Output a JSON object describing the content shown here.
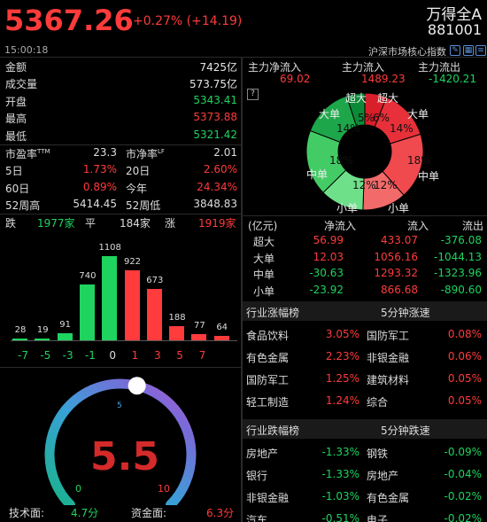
{
  "header": {
    "price": "5367.26",
    "change": "+0.27% (+14.19)",
    "name": "万得全A",
    "code": "881001",
    "time": "15:00:18",
    "index_label": "沪深市场核心指数"
  },
  "stats": [
    {
      "label": "金额",
      "value": "7425亿",
      "color": "white"
    },
    {
      "label": "成交量",
      "value": "573.75亿",
      "color": "white"
    },
    {
      "label": "开盘",
      "value": "5343.41",
      "color": "green"
    },
    {
      "label": "最高",
      "value": "5373.88",
      "color": "red"
    },
    {
      "label": "最低",
      "value": "5321.42",
      "color": "green"
    }
  ],
  "ratios": {
    "pe_label": "市盈率TTM",
    "pe": "23.3",
    "pb_label": "市净率LF",
    "pb": "2.01"
  },
  "periods": [
    {
      "l1": "5日",
      "v1": "1.73%",
      "l2": "20日",
      "v2": "2.60%"
    },
    {
      "l1": "60日",
      "v1": "0.89%",
      "l2": "今年",
      "v2": "24.34%"
    }
  ],
  "week52": {
    "high_label": "52周高",
    "high": "5414.45",
    "low_label": "52周低",
    "low": "3848.83"
  },
  "breadth": {
    "down_label": "跌",
    "down": "1977家",
    "flat_label": "平",
    "flat": "184家",
    "up_label": "涨",
    "up": "1919家"
  },
  "dist_chart": {
    "values": [
      28,
      19,
      91,
      740,
      1108,
      922,
      673,
      188,
      77,
      64
    ],
    "ticks": [
      "-7",
      "-5",
      "-3",
      "-1",
      "0",
      "1",
      "3",
      "5",
      "7"
    ]
  },
  "gauge": {
    "value": "5.5",
    "min": "0",
    "mid": "5",
    "max": "10",
    "value_num": 5.5
  },
  "scores": {
    "tech_label": "技术面:",
    "tech": "4.7分",
    "fund_label": "资金面:",
    "fund": "6.3分"
  },
  "flow": {
    "net_label": "主力净流入",
    "net": "69.02",
    "in_label": "主力流入",
    "in": "1489.23",
    "out_label": "主力流出",
    "out": "-1420.21",
    "help": "?"
  },
  "donut": {
    "labels": [
      "超大",
      "超大",
      "大单",
      "大单",
      "中单",
      "中单",
      "小单",
      "小单"
    ],
    "pcts": [
      "5%",
      "6%",
      "14%",
      "14%",
      "18%",
      "18%",
      "12%",
      "12%"
    ]
  },
  "flow_table": {
    "h": [
      "(亿元)",
      "净流入",
      "流入",
      "流出"
    ],
    "rows": [
      {
        "n": "超大",
        "net": "56.99",
        "in": "433.07",
        "out": "-376.08",
        "nc": "red"
      },
      {
        "n": "大单",
        "net": "12.03",
        "in": "1056.16",
        "out": "-1044.13",
        "nc": "red"
      },
      {
        "n": "中单",
        "net": "-30.63",
        "in": "1293.32",
        "out": "-1323.96",
        "nc": "green"
      },
      {
        "n": "小单",
        "net": "-23.92",
        "in": "866.68",
        "out": "-890.60",
        "nc": "green"
      }
    ]
  },
  "gain": {
    "h1": "行业涨幅榜",
    "h2": "5分钟涨速",
    "rows": [
      {
        "a": "食品饮料",
        "av": "3.05%",
        "b": "国防军工",
        "bv": "0.08%"
      },
      {
        "a": "有色金属",
        "av": "2.23%",
        "b": "非银金融",
        "bv": "0.06%"
      },
      {
        "a": "国防军工",
        "av": "1.25%",
        "b": "建筑材料",
        "bv": "0.05%"
      },
      {
        "a": "轻工制造",
        "av": "1.24%",
        "b": "综合",
        "bv": "0.05%"
      }
    ]
  },
  "loss": {
    "h1": "行业跌幅榜",
    "h2": "5分钟跌速",
    "rows": [
      {
        "a": "房地产",
        "av": "-1.33%",
        "b": "钢铁",
        "bv": "-0.09%"
      },
      {
        "a": "银行",
        "av": "-1.33%",
        "b": "房地产",
        "bv": "-0.04%"
      },
      {
        "a": "非银金融",
        "av": "-1.03%",
        "b": "有色金属",
        "bv": "-0.02%"
      },
      {
        "a": "汽车",
        "av": "-0.51%",
        "b": "电子",
        "bv": "-0.02%"
      }
    ]
  },
  "colors": {
    "red": "#ff3b3b",
    "green": "#1fd35f"
  }
}
